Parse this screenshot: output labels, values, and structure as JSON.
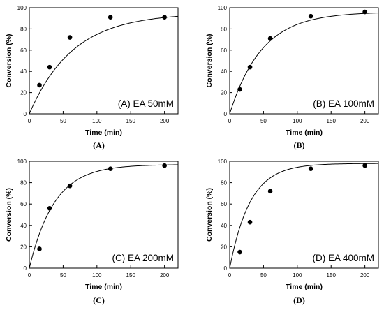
{
  "chart_data": [
    {
      "type": "scatter",
      "annotation": "(A) EA 50mM",
      "caption": "(A)",
      "xlabel": "Time (min)",
      "ylabel": "Conversion (%)",
      "xlim": [
        0,
        220
      ],
      "ylim": [
        0,
        100
      ],
      "xticks": [
        0,
        50,
        100,
        150,
        200
      ],
      "yticks": [
        0,
        20,
        40,
        60,
        80,
        100
      ],
      "grid": false,
      "points": [
        {
          "x": 15,
          "y": 27
        },
        {
          "x": 30,
          "y": 44
        },
        {
          "x": 60,
          "y": 72
        },
        {
          "x": 120,
          "y": 91
        },
        {
          "x": 200,
          "y": 91
        }
      ],
      "fit_curve": {
        "model": "exponential",
        "ymax": 95,
        "k": 0.0155
      }
    },
    {
      "type": "scatter",
      "annotation": "(B) EA 100mM",
      "caption": "(B)",
      "xlabel": "Time (min)",
      "ylabel": "Conversion (%)",
      "xlim": [
        0,
        220
      ],
      "ylim": [
        0,
        100
      ],
      "xticks": [
        0,
        50,
        100,
        150,
        200
      ],
      "yticks": [
        0,
        20,
        40,
        60,
        80,
        100
      ],
      "grid": false,
      "points": [
        {
          "x": 15,
          "y": 23
        },
        {
          "x": 30,
          "y": 44
        },
        {
          "x": 60,
          "y": 71
        },
        {
          "x": 120,
          "y": 92
        },
        {
          "x": 200,
          "y": 96
        }
      ],
      "fit_curve": {
        "model": "exponential",
        "ymax": 96,
        "k": 0.021
      }
    },
    {
      "type": "scatter",
      "annotation": "(C) EA 200mM",
      "caption": "(C)",
      "xlabel": "Time (min)",
      "ylabel": "Conversion (%)",
      "xlim": [
        0,
        220
      ],
      "ylim": [
        0,
        100
      ],
      "xticks": [
        0,
        50,
        100,
        150,
        200
      ],
      "yticks": [
        0,
        20,
        40,
        60,
        80,
        100
      ],
      "grid": false,
      "points": [
        {
          "x": 15,
          "y": 18
        },
        {
          "x": 30,
          "y": 56
        },
        {
          "x": 60,
          "y": 77
        },
        {
          "x": 120,
          "y": 93
        },
        {
          "x": 200,
          "y": 96
        }
      ],
      "fit_curve": {
        "model": "exponential",
        "ymax": 97,
        "k": 0.027
      }
    },
    {
      "type": "scatter",
      "annotation": "(D) EA 400mM",
      "caption": "(D)",
      "xlabel": "Time (min)",
      "ylabel": "Conversion (%)",
      "xlim": [
        0,
        220
      ],
      "ylim": [
        0,
        100
      ],
      "xticks": [
        0,
        50,
        100,
        150,
        200
      ],
      "yticks": [
        0,
        20,
        40,
        60,
        80,
        100
      ],
      "grid": false,
      "points": [
        {
          "x": 15,
          "y": 15
        },
        {
          "x": 30,
          "y": 43
        },
        {
          "x": 60,
          "y": 72
        },
        {
          "x": 120,
          "y": 93
        },
        {
          "x": 200,
          "y": 96
        }
      ],
      "fit_curve": {
        "model": "exponential",
        "ymax": 98,
        "k": 0.033
      }
    }
  ]
}
